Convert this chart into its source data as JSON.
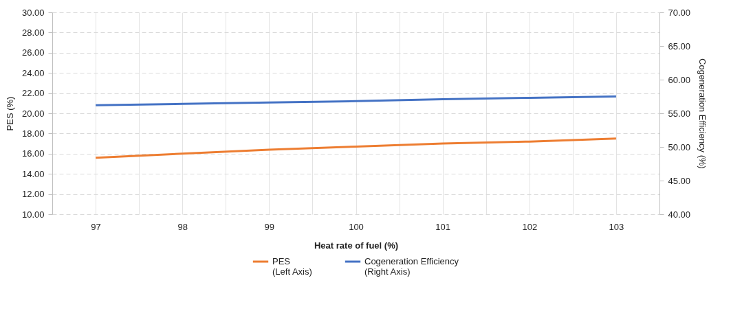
{
  "chart_data": {
    "type": "line",
    "xlabel": "Heat rate of fuel (%)",
    "ylabel": "PES (%)",
    "y2label": "Cogeneration Efficiency (%)",
    "x": [
      97,
      98,
      99,
      100,
      101,
      102,
      103
    ],
    "series": [
      {
        "name": "PES (Left Axis)",
        "color": "#ed7d31",
        "values": [
          15.6,
          16.0,
          16.4,
          16.7,
          17.0,
          17.2,
          17.5
        ]
      },
      {
        "name": "Cogeneration Efficiency (Right Axis)",
        "color": "#4472c4",
        "axis": "y2",
        "values": [
          56.2,
          56.4,
          56.6,
          56.8,
          57.1,
          57.3,
          57.5
        ]
      }
    ],
    "xlim": [
      96.5,
      103.5
    ],
    "xticks": [
      97,
      {
        "value": 97.5,
        "label": null
      },
      98,
      {
        "value": 98.5,
        "label": null
      },
      99,
      {
        "value": 99.5,
        "label": null
      },
      100,
      {
        "value": 100.5,
        "label": null
      },
      101,
      {
        "value": 101.5,
        "label": null
      },
      102,
      {
        "value": 102.5,
        "label": null
      },
      103,
      {
        "value": 103.5,
        "label": null
      }
    ],
    "ylim": [
      10,
      30
    ],
    "yticks": [
      {
        "value": 10,
        "label": "10.00"
      },
      {
        "value": 12,
        "label": "12.00"
      },
      {
        "value": 14,
        "label": "14.00"
      },
      {
        "value": 16,
        "label": "16.00"
      },
      {
        "value": 18,
        "label": "18.00"
      },
      {
        "value": 20,
        "label": "20.00"
      },
      {
        "value": 22,
        "label": "22.00"
      },
      {
        "value": 24,
        "label": "24.00"
      },
      {
        "value": 26,
        "label": "26.00"
      },
      {
        "value": 28,
        "label": "28.00"
      },
      {
        "value": 30,
        "label": "30.00"
      }
    ],
    "y2lim": [
      40,
      70
    ],
    "y2ticks": [
      {
        "value": 40,
        "label": "40.00"
      },
      {
        "value": 45,
        "label": "45.00"
      },
      {
        "value": 50,
        "label": "50.00"
      },
      {
        "value": 55,
        "label": "55.00"
      },
      {
        "value": 60,
        "label": "60.00"
      },
      {
        "value": 65,
        "label": "65.00"
      },
      {
        "value": 70,
        "label": "70.00"
      }
    ],
    "grid": true,
    "legend": "bottom",
    "marker": "none",
    "line_style": "solid"
  }
}
